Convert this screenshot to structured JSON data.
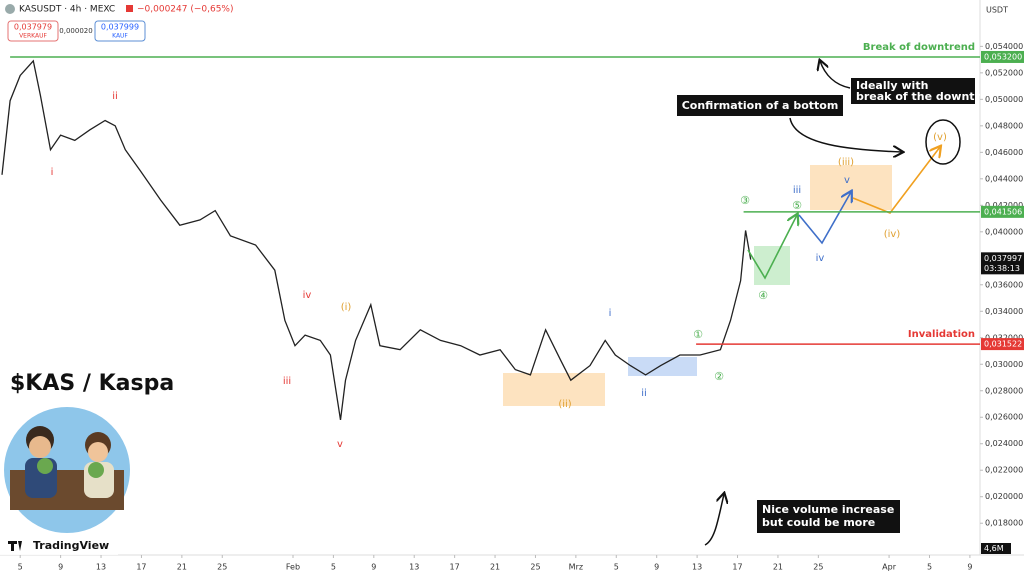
{
  "header": {
    "symbol": "KASUSDT · 4h · MEXC",
    "change": "−0,000247 (−0,65%)",
    "sell_price": "0,037979",
    "sell_label": "VERKAUF",
    "spread": "0,000020",
    "buy_price": "0,037999",
    "buy_label": "KAUF",
    "currency": "USDT"
  },
  "chart_data": {
    "type": "line",
    "title": "$KAS / Kaspa",
    "brand": "TradingView",
    "x": [
      2.2,
      3.0,
      4.0,
      5.3,
      6.0,
      7.0,
      8.0,
      9.4,
      10.9,
      12.4,
      13.4,
      14.4,
      15.9,
      17.9,
      19.8,
      21.8,
      23.3,
      24.8,
      27.3,
      29.2,
      30.2,
      31.2,
      32.2,
      33.7,
      34.7,
      35.7,
      36.2,
      37.2,
      38.7,
      39.6,
      41.6,
      43.6,
      45.6,
      47.6,
      49.5,
      51.5,
      53.0,
      54.5,
      56.0,
      57.5,
      58.5,
      60.4,
      61.9,
      62.9,
      64.4,
      65.9,
      67.4,
      69.3,
      71.3,
      73.3,
      74.3,
      75.3,
      75.8,
      76.3
    ],
    "series": [
      {
        "color": "#222222",
        "values": [
          0.0443,
          0.0499,
          0.0518,
          0.0529,
          0.0503,
          0.0462,
          0.0473,
          0.0469,
          0.0477,
          0.0484,
          0.048,
          0.0462,
          0.0446,
          0.0424,
          0.0405,
          0.0409,
          0.0416,
          0.0397,
          0.039,
          0.0371,
          0.0333,
          0.0314,
          0.0322,
          0.0318,
          0.0307,
          0.0258,
          0.0288,
          0.0318,
          0.0345,
          0.0314,
          0.0311,
          0.0326,
          0.0318,
          0.0314,
          0.0307,
          0.0311,
          0.0296,
          0.0292,
          0.0326,
          0.0303,
          0.0288,
          0.0299,
          0.0318,
          0.0307,
          0.0299,
          0.0292,
          0.0299,
          0.0307,
          0.0307,
          0.0311,
          0.0333,
          0.0363,
          0.0401,
          0.0379
        ]
      }
    ],
    "xlim": [
      2.0,
      99.0
    ],
    "xticks": [
      {
        "value": 4,
        "label": "5"
      },
      {
        "value": 8,
        "label": "9"
      },
      {
        "value": 12,
        "label": "13"
      },
      {
        "value": 16,
        "label": "17"
      },
      {
        "value": 20,
        "label": "21"
      },
      {
        "value": 24,
        "label": "25"
      },
      {
        "value": 31,
        "label": "Feb"
      },
      {
        "value": 35,
        "label": "5"
      },
      {
        "value": 39,
        "label": "9"
      },
      {
        "value": 43,
        "label": "13"
      },
      {
        "value": 47,
        "label": "17"
      },
      {
        "value": 51,
        "label": "21"
      },
      {
        "value": 55,
        "label": "25"
      },
      {
        "value": 59,
        "label": "Mrz"
      },
      {
        "value": 63,
        "label": "5"
      },
      {
        "value": 67,
        "label": "9"
      },
      {
        "value": 71,
        "label": "13"
      },
      {
        "value": 75,
        "label": "17"
      },
      {
        "value": 79,
        "label": "21"
      },
      {
        "value": 83,
        "label": "25"
      },
      {
        "value": 90,
        "label": "Apr"
      },
      {
        "value": 94,
        "label": "5"
      },
      {
        "value": 98,
        "label": "9"
      }
    ],
    "ylim": [
      0.0156,
      0.0575
    ],
    "yticks": [
      {
        "value": 0.054,
        "label": "0,054000"
      },
      {
        "value": 0.052,
        "label": "0,052000"
      },
      {
        "value": 0.05,
        "label": "0,050000"
      },
      {
        "value": 0.048,
        "label": "0,048000"
      },
      {
        "value": 0.046,
        "label": "0,046000"
      },
      {
        "value": 0.044,
        "label": "0,044000"
      },
      {
        "value": 0.042,
        "label": "0,042000"
      },
      {
        "value": 0.04,
        "label": "0,040000"
      },
      {
        "value": 0.036,
        "label": "0,036000"
      },
      {
        "value": 0.034,
        "label": "0,034000"
      },
      {
        "value": 0.032,
        "label": "0,032000"
      },
      {
        "value": 0.03,
        "label": "0,030000"
      },
      {
        "value": 0.028,
        "label": "0,028000"
      },
      {
        "value": 0.026,
        "label": "0,026000"
      },
      {
        "value": 0.024,
        "label": "0,024000"
      },
      {
        "value": 0.022,
        "label": "0,022000"
      },
      {
        "value": 0.02,
        "label": "0,020000"
      },
      {
        "value": 0.018,
        "label": "0,018000"
      }
    ],
    "grid": false,
    "levels": [
      {
        "value": 0.0532,
        "label": "0,053200",
        "color": "#4caf50",
        "text": "Break of downtrend",
        "start": 3.0
      },
      {
        "value": 0.041506,
        "label": "0,041506",
        "color": "#4caf50",
        "start": 75.6
      },
      {
        "value": 0.031522,
        "label": "0,031522",
        "color": "#e53935",
        "text": "Invalidation",
        "start": 70.9
      }
    ],
    "current": {
      "value": 0.037997,
      "label": "0,037997",
      "timer": "03:38:13"
    },
    "volume_label": "4,6M",
    "callouts": {
      "bottom": "Confirmation of a bottom",
      "ideal_1": "Ideally with",
      "ideal_2": "break of the downtrend",
      "vol_1": "Nice volume increase",
      "vol_2": "but could be more"
    },
    "waves": {
      "r1": "i",
      "r2": "ii",
      "r3": "iii",
      "r4": "iv",
      "r5": "v",
      "o1": "(i)",
      "o2": "(ii)",
      "o3": "(iii)",
      "o4": "(iv)",
      "o5": "(v)",
      "b1": "i",
      "b2": "ii",
      "b3": "iii",
      "b4": "iv",
      "b5": "v",
      "g1": "①",
      "g2": "②",
      "g3": "③",
      "g4": "④",
      "g5": "⑤"
    }
  }
}
